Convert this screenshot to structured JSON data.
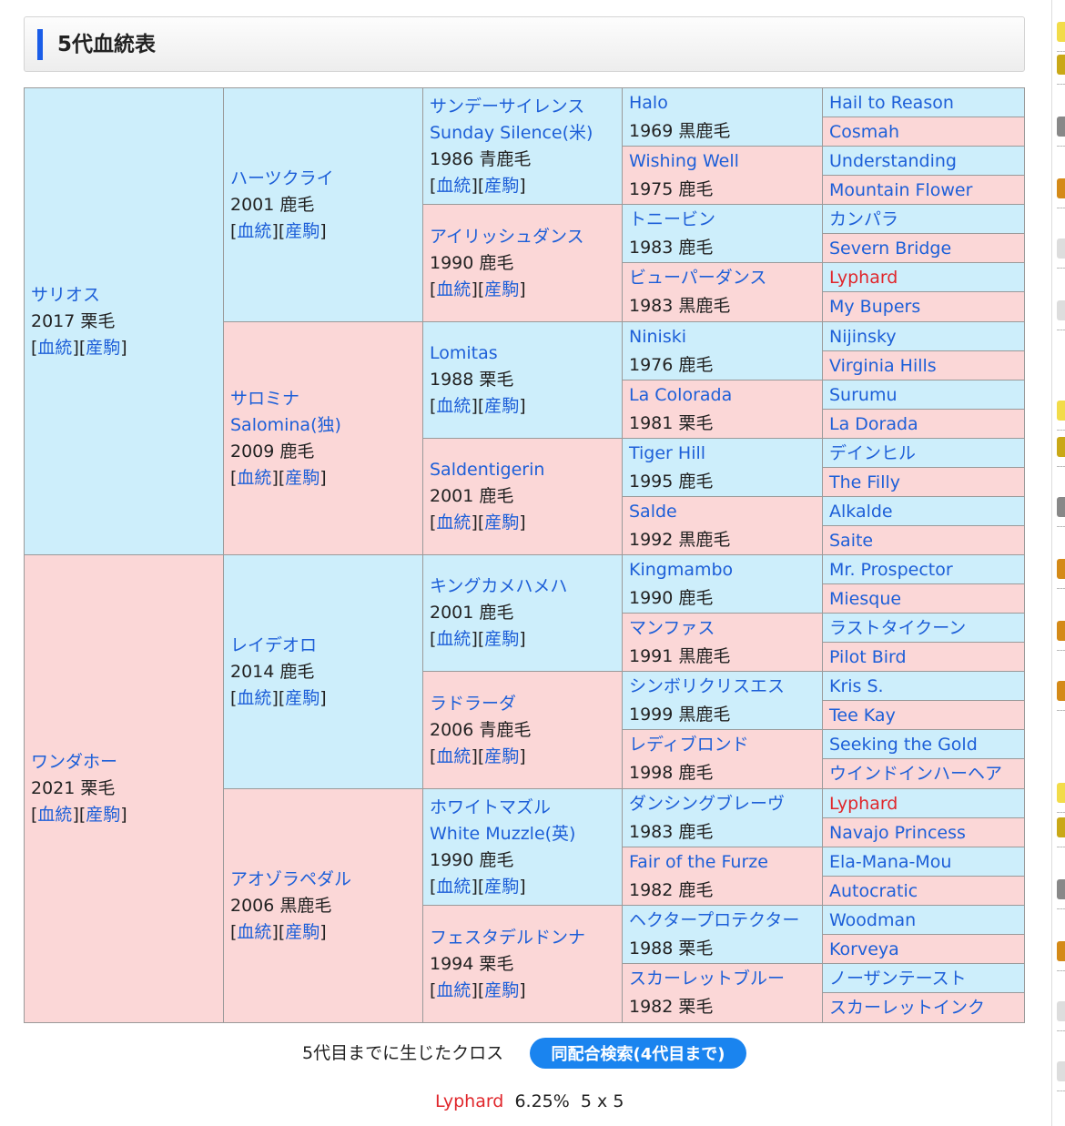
{
  "header": {
    "title": "5代血統表"
  },
  "link_labels": {
    "pedigree": "血統",
    "foals": "産駒"
  },
  "pedigree": {
    "gen1": [
      {
        "name": "サリオス",
        "info": "2017 栗毛",
        "sex": "male"
      },
      {
        "name": "ワンダホー",
        "info": "2021 栗毛",
        "sex": "female"
      }
    ],
    "gen2": [
      {
        "name": "ハーツクライ",
        "info": "2001 鹿毛",
        "sex": "male"
      },
      {
        "name": "サロミナ",
        "name_en": "Salomina(独)",
        "info": "2009 鹿毛",
        "sex": "female"
      },
      {
        "name": "レイデオロ",
        "info": "2014 鹿毛",
        "sex": "male"
      },
      {
        "name": "アオゾラペダル",
        "info": "2006 黒鹿毛",
        "sex": "female"
      }
    ],
    "gen3": [
      {
        "name": "サンデーサイレンス",
        "name_en": "Sunday Silence(米)",
        "info": "1986 青鹿毛",
        "sex": "male"
      },
      {
        "name": "アイリッシュダンス",
        "info": "1990 鹿毛",
        "sex": "female"
      },
      {
        "name": "Lomitas",
        "info": "1988 栗毛",
        "sex": "male"
      },
      {
        "name": "Saldentigerin",
        "info": "2001 鹿毛",
        "sex": "female"
      },
      {
        "name": "キングカメハメハ",
        "info": "2001 鹿毛",
        "sex": "male"
      },
      {
        "name": "ラドラーダ",
        "info": "2006 青鹿毛",
        "sex": "female"
      },
      {
        "name": "ホワイトマズル",
        "name_en": "White Muzzle(英)",
        "info": "1990 鹿毛",
        "sex": "male"
      },
      {
        "name": "フェスタデルドンナ",
        "info": "1994 栗毛",
        "sex": "female"
      }
    ],
    "gen4": [
      {
        "name": "Halo",
        "info": "1969 黒鹿毛",
        "sex": "male"
      },
      {
        "name": "Wishing Well",
        "info": "1975 鹿毛",
        "sex": "female"
      },
      {
        "name": "トニービン",
        "info": "1983 鹿毛",
        "sex": "male"
      },
      {
        "name": "ビューパーダンス",
        "info": "1983 黒鹿毛",
        "sex": "female"
      },
      {
        "name": "Niniski",
        "info": "1976 鹿毛",
        "sex": "male"
      },
      {
        "name": "La Colorada",
        "info": "1981 栗毛",
        "sex": "female"
      },
      {
        "name": "Tiger Hill",
        "info": "1995 鹿毛",
        "sex": "male"
      },
      {
        "name": "Salde",
        "info": "1992 黒鹿毛",
        "sex": "female"
      },
      {
        "name": "Kingmambo",
        "info": "1990 鹿毛",
        "sex": "male"
      },
      {
        "name": "マンファス",
        "info": "1991 黒鹿毛",
        "sex": "female"
      },
      {
        "name": "シンボリクリスエス",
        "info": "1999 黒鹿毛",
        "sex": "male"
      },
      {
        "name": "レディブロンド",
        "info": "1998 鹿毛",
        "sex": "female"
      },
      {
        "name": "ダンシングブレーヴ",
        "info": "1983 鹿毛",
        "sex": "male"
      },
      {
        "name": "Fair of the Furze",
        "info": "1982 鹿毛",
        "sex": "female"
      },
      {
        "name": "ヘクタープロテクター",
        "info": "1988 栗毛",
        "sex": "male"
      },
      {
        "name": "スカーレットブルー",
        "info": "1982 栗毛",
        "sex": "female"
      }
    ],
    "gen5": [
      {
        "name": "Hail to Reason",
        "sex": "male"
      },
      {
        "name": "Cosmah",
        "sex": "female"
      },
      {
        "name": "Understanding",
        "sex": "male"
      },
      {
        "name": "Mountain Flower",
        "sex": "female"
      },
      {
        "name": "カンパラ",
        "sex": "male"
      },
      {
        "name": "Severn Bridge",
        "sex": "female"
      },
      {
        "name": "Lyphard",
        "sex": "male",
        "cross": true
      },
      {
        "name": "My Bupers",
        "sex": "female"
      },
      {
        "name": "Nijinsky",
        "sex": "male"
      },
      {
        "name": "Virginia Hills",
        "sex": "female"
      },
      {
        "name": "Surumu",
        "sex": "male"
      },
      {
        "name": "La Dorada",
        "sex": "female"
      },
      {
        "name": "デインヒル",
        "sex": "male"
      },
      {
        "name": "The Filly",
        "sex": "female"
      },
      {
        "name": "Alkalde",
        "sex": "male"
      },
      {
        "name": "Saite",
        "sex": "female"
      },
      {
        "name": "Mr. Prospector",
        "sex": "male"
      },
      {
        "name": "Miesque",
        "sex": "female"
      },
      {
        "name": "ラストタイクーン",
        "sex": "male"
      },
      {
        "name": "Pilot Bird",
        "sex": "female"
      },
      {
        "name": "Kris S.",
        "sex": "male"
      },
      {
        "name": "Tee Kay",
        "sex": "female"
      },
      {
        "name": "Seeking the Gold",
        "sex": "male"
      },
      {
        "name": "ウインドインハーヘア",
        "sex": "female"
      },
      {
        "name": "Lyphard",
        "sex": "male",
        "cross": true
      },
      {
        "name": "Navajo Princess",
        "sex": "female"
      },
      {
        "name": "Ela-Mana-Mou",
        "sex": "male"
      },
      {
        "name": "Autocratic",
        "sex": "female"
      },
      {
        "name": "Woodman",
        "sex": "male"
      },
      {
        "name": "Korveya",
        "sex": "female"
      },
      {
        "name": "ノーザンテースト",
        "sex": "male"
      },
      {
        "name": "スカーレットインク",
        "sex": "female"
      }
    ]
  },
  "cross": {
    "label": "5代目までに生じたクロス",
    "search_button": "同配合検索(4代目まで)",
    "entries": [
      {
        "name": "Lyphard",
        "percent": "6.25%",
        "pattern": "5 x 5"
      }
    ]
  },
  "colors": {
    "male_bg": "#cdeefb",
    "female_bg": "#fbd7d7",
    "link": "#1d5fd8",
    "cross": "#e0262b",
    "accent": "#1a5de8"
  }
}
